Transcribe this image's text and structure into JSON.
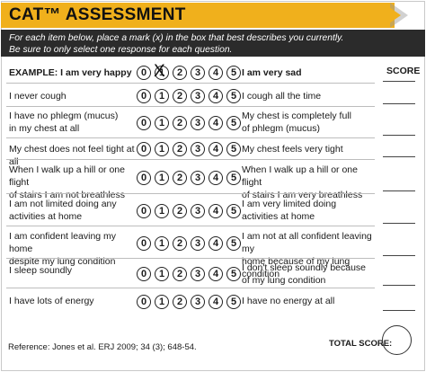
{
  "header": {
    "title": "CAT™ ASSESSMENT",
    "instructions_line1": "For each item below, place a mark (x) in the box that best describes you currently.",
    "instructions_line2": "Be sure to only select one response for each question."
  },
  "example": {
    "left": "EXAMPLE: I am very happy",
    "right": "I am very sad",
    "marked_value": 1
  },
  "score_header": "SCORE",
  "scale": [
    "0",
    "1",
    "2",
    "3",
    "4",
    "5"
  ],
  "x_mark": "X",
  "items": [
    {
      "left": [
        "I never cough"
      ],
      "right": [
        "I cough all the time"
      ]
    },
    {
      "left": [
        "I have no phlegm (mucus)",
        "in my chest at all"
      ],
      "right": [
        "My chest is completely full",
        "of phlegm (mucus)"
      ]
    },
    {
      "left": [
        "My chest does not feel tight at all"
      ],
      "right": [
        "My chest feels very tight"
      ]
    },
    {
      "left": [
        "When I walk up a hill or one flight",
        "of stairs I am not breathless"
      ],
      "right": [
        "When I walk up a hill or one flight",
        "of stairs I am very breathless"
      ]
    },
    {
      "left": [
        "I am not limited doing any",
        "activities at home"
      ],
      "right": [
        "I am very limited doing",
        "activities at home"
      ]
    },
    {
      "left": [
        "I am confident leaving my home",
        "despite my lung condition"
      ],
      "right": [
        "I am not at all confident leaving my",
        "home because of my lung condition"
      ]
    },
    {
      "left": [
        "I sleep soundly"
      ],
      "right": [
        "I don't sleep soundly because",
        "of my lung condition"
      ]
    },
    {
      "left": [
        "I have lots of energy"
      ],
      "right": [
        "I have no energy at all"
      ]
    }
  ],
  "footer": {
    "reference": "Reference: Jones et al. ERJ 2009; 34 (3); 648-54.",
    "total_label": "TOTAL SCORE:"
  },
  "colors": {
    "header_bg": "#f0b01c",
    "instructions_bg": "#2b2b2b"
  }
}
